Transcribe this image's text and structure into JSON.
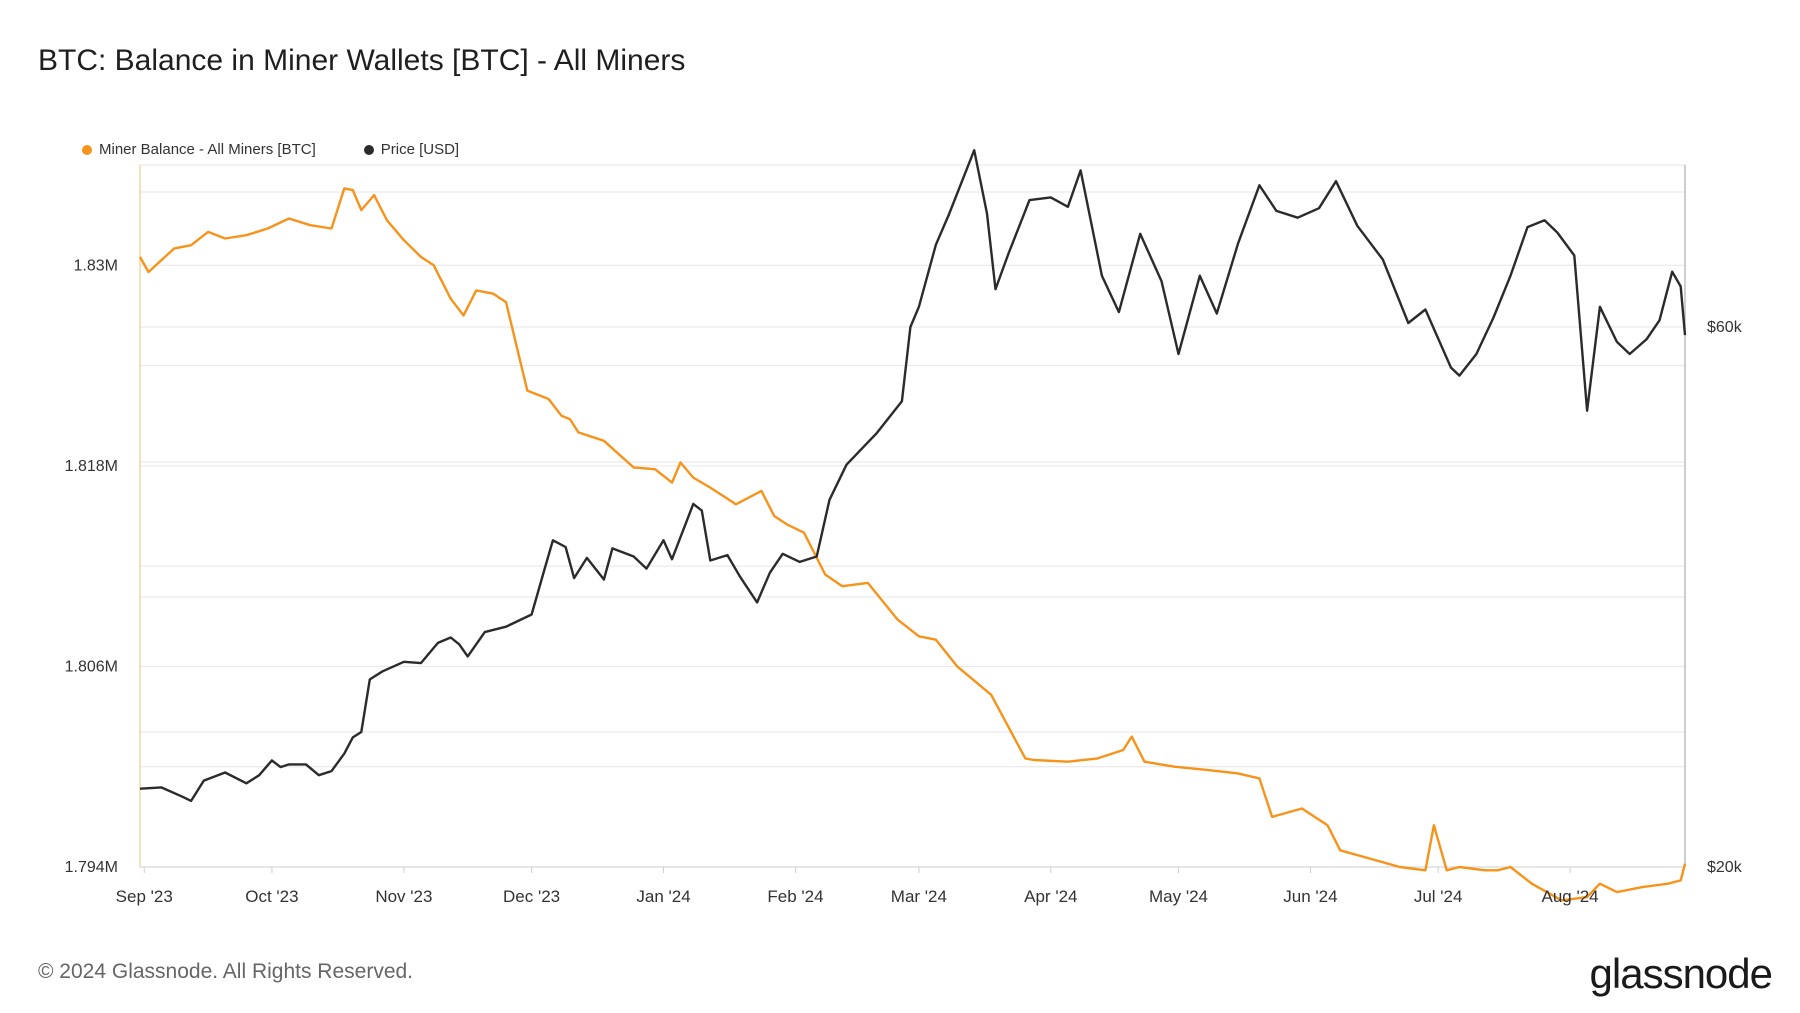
{
  "header": {
    "title": "BTC: Balance in Miner Wallets [BTC] - All Miners"
  },
  "footer": {
    "copyright": "© 2024 Glassnode. All Rights Reserved.",
    "brand": "glassnode"
  },
  "colors": {
    "balance": "#f7931a",
    "price": "#2b2b2b",
    "grid": "#e6e6e6",
    "left_axis": "#f2d9a0",
    "right_axis": "#bdbdbd"
  },
  "chart_data": {
    "type": "line",
    "title": "BTC: Balance in Miner Wallets [BTC] - All Miners",
    "legend_position": "top-left",
    "grid": true,
    "x_ticks": [
      "Sep '23",
      "Oct '23",
      "Nov '23",
      "Dec '23",
      "Jan '24",
      "Feb '24",
      "Mar '24",
      "Apr '24",
      "May '24",
      "Jun '24",
      "Jul '24",
      "Aug '24"
    ],
    "x_range": [
      "2023-08-31",
      "2024-08-28"
    ],
    "y_left": {
      "ticks": [
        "1.794M",
        "1.806M",
        "1.818M",
        "1.83M"
      ],
      "range": [
        1.794,
        1.836
      ],
      "unit": "M BTC"
    },
    "y_right": {
      "ticks": [
        "$20k",
        "$60k"
      ],
      "range": [
        20,
        72
      ],
      "unit": "k USD"
    },
    "series": [
      {
        "name": "Miner Balance - All Miners [BTC]",
        "axis": "left",
        "x": [
          "2023-08-31",
          "2023-09-02",
          "2023-09-05",
          "2023-09-08",
          "2023-09-12",
          "2023-09-16",
          "2023-09-20",
          "2023-09-25",
          "2023-09-30",
          "2023-10-05",
          "2023-10-10",
          "2023-10-15",
          "2023-10-18",
          "2023-10-20",
          "2023-10-22",
          "2023-10-25",
          "2023-10-28",
          "2023-11-01",
          "2023-11-05",
          "2023-11-08",
          "2023-11-12",
          "2023-11-15",
          "2023-11-18",
          "2023-11-22",
          "2023-11-25",
          "2023-11-30",
          "2023-12-05",
          "2023-12-08",
          "2023-12-10",
          "2023-12-12",
          "2023-12-18",
          "2023-12-25",
          "2023-12-30",
          "2024-01-03",
          "2024-01-05",
          "2024-01-08",
          "2024-01-12",
          "2024-01-18",
          "2024-01-24",
          "2024-01-27",
          "2024-01-30",
          "2024-02-03",
          "2024-02-08",
          "2024-02-12",
          "2024-02-18",
          "2024-02-25",
          "2024-03-01",
          "2024-03-05",
          "2024-03-10",
          "2024-03-18",
          "2024-03-26",
          "2024-03-28",
          "2024-04-05",
          "2024-04-12",
          "2024-04-18",
          "2024-04-20",
          "2024-04-23",
          "2024-04-30",
          "2024-05-08",
          "2024-05-15",
          "2024-05-20",
          "2024-05-23",
          "2024-05-30",
          "2024-06-05",
          "2024-06-08",
          "2024-06-15",
          "2024-06-22",
          "2024-06-28",
          "2024-06-30",
          "2024-07-03",
          "2024-07-06",
          "2024-07-12",
          "2024-07-15",
          "2024-07-18",
          "2024-07-23",
          "2024-07-30",
          "2024-08-05",
          "2024-08-08",
          "2024-08-12",
          "2024-08-18",
          "2024-08-24",
          "2024-08-27",
          "2024-08-28"
        ],
        "values": [
          1.8305,
          1.8296,
          1.8303,
          1.831,
          1.8312,
          1.832,
          1.8316,
          1.8318,
          1.8322,
          1.8328,
          1.8324,
          1.8322,
          1.8346,
          1.8345,
          1.8333,
          1.8342,
          1.8327,
          1.8315,
          1.8305,
          1.83,
          1.828,
          1.827,
          1.8285,
          1.8283,
          1.8278,
          1.8225,
          1.822,
          1.821,
          1.8208,
          1.82,
          1.8195,
          1.8179,
          1.8178,
          1.817,
          1.8182,
          1.8173,
          1.8167,
          1.8157,
          1.8165,
          1.815,
          1.8145,
          1.814,
          1.8115,
          1.8108,
          1.811,
          1.8088,
          1.8078,
          1.8076,
          1.806,
          1.8043,
          1.8005,
          1.8004,
          1.8003,
          1.8005,
          1.801,
          1.8018,
          1.8003,
          1.8,
          1.7998,
          1.7996,
          1.7993,
          1.797,
          1.7975,
          1.7965,
          1.795,
          1.7945,
          1.794,
          1.7938,
          1.7965,
          1.7938,
          1.794,
          1.7938,
          1.7938,
          1.794,
          1.793,
          1.792,
          1.7922,
          1.793,
          1.7925,
          1.7928,
          1.793,
          1.7932,
          1.7942
        ]
      },
      {
        "name": "Price [USD]",
        "axis": "right",
        "x": [
          "2023-08-31",
          "2023-09-05",
          "2023-09-10",
          "2023-09-12",
          "2023-09-15",
          "2023-09-20",
          "2023-09-25",
          "2023-09-28",
          "2023-10-01",
          "2023-10-03",
          "2023-10-05",
          "2023-10-09",
          "2023-10-12",
          "2023-10-15",
          "2023-10-18",
          "2023-10-20",
          "2023-10-22",
          "2023-10-24",
          "2023-10-27",
          "2023-11-01",
          "2023-11-05",
          "2023-11-09",
          "2023-11-12",
          "2023-11-14",
          "2023-11-16",
          "2023-11-20",
          "2023-11-25",
          "2023-12-01",
          "2023-12-04",
          "2023-12-06",
          "2023-12-09",
          "2023-12-11",
          "2023-12-14",
          "2023-12-18",
          "2023-12-20",
          "2023-12-25",
          "2023-12-28",
          "2024-01-01",
          "2024-01-03",
          "2024-01-08",
          "2024-01-10",
          "2024-01-12",
          "2024-01-16",
          "2024-01-19",
          "2024-01-23",
          "2024-01-26",
          "2024-01-29",
          "2024-02-02",
          "2024-02-06",
          "2024-02-09",
          "2024-02-13",
          "2024-02-20",
          "2024-02-26",
          "2024-02-28",
          "2024-03-01",
          "2024-03-05",
          "2024-03-08",
          "2024-03-12",
          "2024-03-14",
          "2024-03-17",
          "2024-03-19",
          "2024-03-22",
          "2024-03-27",
          "2024-04-01",
          "2024-04-05",
          "2024-04-08",
          "2024-04-13",
          "2024-04-17",
          "2024-04-22",
          "2024-04-27",
          "2024-05-01",
          "2024-05-06",
          "2024-05-10",
          "2024-05-15",
          "2024-05-20",
          "2024-05-24",
          "2024-05-29",
          "2024-06-03",
          "2024-06-07",
          "2024-06-12",
          "2024-06-18",
          "2024-06-24",
          "2024-06-28",
          "2024-07-04",
          "2024-07-06",
          "2024-07-10",
          "2024-07-14",
          "2024-07-18",
          "2024-07-22",
          "2024-07-26",
          "2024-07-29",
          "2024-08-02",
          "2024-08-05",
          "2024-08-08",
          "2024-08-12",
          "2024-08-15",
          "2024-08-19",
          "2024-08-22",
          "2024-08-25",
          "2024-08-27",
          "2024-08-28"
        ],
        "values": [
          25.8,
          25.9,
          25.2,
          24.9,
          26.4,
          27.0,
          26.2,
          26.8,
          27.9,
          27.4,
          27.6,
          27.6,
          26.8,
          27.1,
          28.4,
          29.6,
          30.0,
          33.9,
          34.5,
          35.2,
          35.1,
          36.6,
          37.0,
          36.5,
          35.6,
          37.4,
          37.8,
          38.7,
          42.0,
          44.2,
          43.7,
          41.4,
          42.9,
          41.3,
          43.6,
          43.0,
          42.1,
          44.2,
          42.8,
          46.9,
          46.4,
          42.7,
          43.1,
          41.5,
          39.6,
          41.8,
          43.2,
          42.6,
          43.0,
          47.2,
          49.8,
          52.1,
          54.5,
          60.0,
          61.5,
          66.1,
          68.3,
          71.5,
          73.1,
          68.4,
          62.8,
          65.4,
          69.4,
          69.6,
          68.9,
          71.6,
          63.8,
          61.1,
          66.9,
          63.4,
          58.0,
          63.8,
          61.0,
          66.2,
          70.5,
          68.6,
          68.1,
          68.8,
          70.8,
          67.5,
          65.0,
          60.3,
          61.3,
          57.0,
          56.4,
          58.0,
          60.7,
          63.8,
          67.4,
          67.9,
          67.0,
          65.3,
          53.8,
          61.5,
          58.9,
          58.0,
          59.1,
          60.5,
          64.1,
          63.0,
          59.4
        ]
      }
    ]
  }
}
